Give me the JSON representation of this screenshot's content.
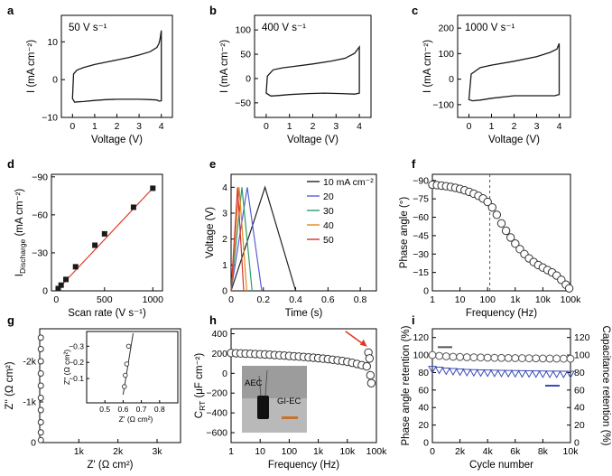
{
  "chart_data": [
    {
      "panel": "a",
      "type": "line",
      "annotation": "50 V s⁻¹",
      "xlabel": "Voltage (V)",
      "ylabel": "I (mA cm⁻²)",
      "xlim": [
        -0.5,
        4.5
      ],
      "ylim": [
        -10,
        17
      ],
      "xticks": [
        0,
        1,
        2,
        3,
        4
      ],
      "yticks": [
        -10,
        0,
        10
      ],
      "series": [
        {
          "x": [
            0,
            0.05,
            0.2,
            0.5,
            1,
            1.5,
            2,
            2.5,
            3,
            3.5,
            3.8,
            3.9,
            3.95,
            4,
            4,
            3.9,
            3.8,
            3.5,
            3,
            2.5,
            2,
            1.5,
            1,
            0.5,
            0.2,
            0.1,
            0
          ],
          "y": [
            -5,
            1.5,
            2.5,
            3.2,
            4,
            4.6,
            5.2,
            5.8,
            6.5,
            7.4,
            8.5,
            9.6,
            11,
            13,
            -5.6,
            -5.7,
            -5.4,
            -5.3,
            -5.2,
            -5.2,
            -5.2,
            -5.3,
            -5.5,
            -5.8,
            -5.9,
            -6,
            -5
          ]
        }
      ]
    },
    {
      "panel": "b",
      "type": "line",
      "annotation": "400 V s⁻¹",
      "xlabel": "Voltage (V)",
      "ylabel": "I (mA cm⁻²)",
      "xlim": [
        -0.5,
        4.5
      ],
      "ylim": [
        -80,
        130
      ],
      "xticks": [
        0,
        1,
        2,
        3,
        4
      ],
      "yticks": [
        -50,
        0,
        50,
        100
      ],
      "series": [
        {
          "x": [
            0,
            0.05,
            0.3,
            0.7,
            1.2,
            2,
            2.8,
            3.4,
            3.8,
            4,
            4,
            3.8,
            3.2,
            2.5,
            1.8,
            1,
            0.5,
            0.2,
            0
          ],
          "y": [
            -30,
            5,
            18,
            22,
            25,
            30,
            36,
            42,
            52,
            65,
            -30,
            -32,
            -31,
            -30,
            -31,
            -33,
            -35,
            -36,
            -30
          ]
        }
      ]
    },
    {
      "panel": "c",
      "type": "line",
      "annotation": "1000 V s⁻¹",
      "xlabel": "Voltage (V)",
      "ylabel": "I (mA cm⁻²)",
      "xlim": [
        -0.5,
        4.5
      ],
      "ylim": [
        -150,
        250
      ],
      "xticks": [
        0,
        1,
        2,
        3,
        4
      ],
      "yticks": [
        -100,
        0,
        100,
        200
      ],
      "series": [
        {
          "x": [
            0,
            0.1,
            0.5,
            1,
            2,
            3,
            3.6,
            3.9,
            4,
            4,
            3.8,
            3,
            2,
            1,
            0.5,
            0.15,
            0
          ],
          "y": [
            -80,
            20,
            45,
            55,
            70,
            88,
            105,
            118,
            140,
            -60,
            -65,
            -65,
            -65,
            -75,
            -82,
            -85,
            -80
          ]
        }
      ]
    },
    {
      "panel": "d",
      "type": "scatter",
      "xlabel": "Scan rate (V s⁻¹)",
      "ylabel_main": "I",
      "ylabel_sub": "Discharge",
      "ylabel_unit": " (mA cm⁻²)",
      "xlim": [
        -50,
        1100
      ],
      "ylim": [
        0,
        -92
      ],
      "xticks": [
        0,
        500,
        1000
      ],
      "yticks": [
        0,
        -30,
        -60,
        -90
      ],
      "series": [
        {
          "x": [
            20,
            50,
            100,
            200,
            400,
            500,
            800,
            1000
          ],
          "y": [
            -1.8,
            -4.5,
            -9,
            -19,
            -36,
            -45,
            -66,
            -81
          ]
        }
      ],
      "fit": {
        "x": [
          0,
          1000
        ],
        "y": [
          0,
          -81
        ]
      }
    },
    {
      "panel": "e",
      "type": "line",
      "xlabel": "Time (s)",
      "ylabel": "Voltage (V)",
      "xlim": [
        0,
        0.9
      ],
      "ylim": [
        0,
        4.5
      ],
      "xticks": [
        0,
        0.2,
        0.4,
        0.6,
        0.8
      ],
      "yticks": [
        0,
        1,
        2,
        3,
        4
      ],
      "legend_position": "right",
      "series": [
        {
          "name": "10 mA cm⁻²",
          "color": "#222222",
          "x": [
            0,
            0.21,
            0.4
          ],
          "y": [
            0,
            4,
            0
          ]
        },
        {
          "name": "20",
          "color": "#5a5ed6",
          "x": [
            0,
            0.1,
            0.19
          ],
          "y": [
            0,
            4,
            0
          ]
        },
        {
          "name": "30",
          "color": "#2a9d6a",
          "x": [
            0,
            0.067,
            0.13
          ],
          "y": [
            0,
            4,
            0
          ]
        },
        {
          "name": "40",
          "color": "#e08a1e",
          "x": [
            0,
            0.05,
            0.097
          ],
          "y": [
            0,
            4,
            0
          ]
        },
        {
          "name": "50",
          "color": "#d6332b",
          "x": [
            0,
            0.04,
            0.078
          ],
          "y": [
            0,
            4,
            0
          ]
        }
      ]
    },
    {
      "panel": "f",
      "type": "scatter",
      "xlabel": "Frequency (Hz)",
      "ylabel": "Phase angle (°)",
      "xscale": "log",
      "xlim": [
        1,
        100000
      ],
      "ylim": [
        0,
        -95
      ],
      "xtick_values": [
        1,
        10,
        100,
        1000,
        10000,
        100000
      ],
      "xtick_labels": [
        "1",
        "10",
        "100",
        "1k",
        "10k",
        "100k"
      ],
      "yticks": [
        0,
        -15,
        -30,
        -45,
        -60,
        -75,
        -90
      ],
      "vline": 120,
      "series": [
        {
          "x": [
            1,
            1.47,
            2.15,
            3.16,
            4.64,
            6.81,
            10,
            14.7,
            21.5,
            31.6,
            46.4,
            68.1,
            100,
            147,
            215,
            316,
            464,
            681,
            1000,
            1470,
            2150,
            3160,
            4640,
            6810,
            10000,
            14700,
            21500,
            31600,
            46400,
            68100,
            90000
          ],
          "y": [
            -86.5,
            -86.2,
            -85.8,
            -85.3,
            -84.7,
            -84,
            -83.1,
            -82,
            -80.7,
            -79.2,
            -77.5,
            -75.3,
            -72.5,
            -68,
            -62,
            -55,
            -49,
            -43.5,
            -38.5,
            -34,
            -30,
            -26.5,
            -23.5,
            -21,
            -19,
            -17,
            -15,
            -12.5,
            -9,
            -5,
            -2
          ]
        }
      ]
    },
    {
      "panel": "g",
      "type": "scatter",
      "xlabel": "Z' (Ω cm²)",
      "ylabel": "Z'' (Ω cm²)",
      "xlim": [
        0,
        3600
      ],
      "ylim": [
        0,
        -2800
      ],
      "xtick_values": [
        1000,
        2000,
        3000
      ],
      "xtick_labels": [
        "1k",
        "2k",
        "3k"
      ],
      "ytick_values": [
        0,
        -1000,
        -2000
      ],
      "ytick_labels": [
        "0",
        "-1k",
        "-2k"
      ],
      "series": [
        {
          "x": [
            0.6,
            0.6,
            0.7,
            0.8,
            0.9,
            1,
            1.1,
            1.2,
            1.4,
            1.6
          ],
          "y": [
            -2580,
            -2300,
            -2000,
            -1700,
            -1400,
            -1100,
            -800,
            -500,
            -250,
            -60
          ]
        }
      ],
      "inset": {
        "xlabel": "Z' (Ω cm²)",
        "ylabel": "Z'' (Ω cm²)",
        "xlim": [
          0.4,
          0.9
        ],
        "ylim": [
          0,
          -0.38
        ],
        "xticks": [
          0.5,
          0.6,
          0.7,
          0.8
        ],
        "yticks": [
          -0.1,
          -0.2,
          -0.3
        ],
        "x": [
          0.607,
          0.612,
          0.62,
          0.63
        ],
        "y": [
          -0.05,
          -0.12,
          -0.19,
          -0.3
        ],
        "line_x": [
          0.6,
          0.655
        ],
        "line_y": [
          0,
          -0.38
        ]
      }
    },
    {
      "panel": "h",
      "type": "scatter",
      "xlabel": "Frequency (Hz)",
      "ylabel_main": "C",
      "ylabel_sub": "RT",
      "ylabel_unit": " (μF cm⁻²)",
      "xscale": "log",
      "xlim": [
        1,
        100000
      ],
      "ylim": [
        -700,
        450
      ],
      "xtick_values": [
        1,
        10,
        100,
        1000,
        10000,
        100000
      ],
      "xtick_labels": [
        "1",
        "10",
        "100",
        "1k",
        "10k",
        "100k"
      ],
      "yticks": [
        -600,
        -400,
        -200,
        0,
        200,
        400
      ],
      "arrow_color": "#e03a2a",
      "photo_labels": [
        "AEC",
        "GI-EC"
      ],
      "series": [
        {
          "x": [
            1,
            1.47,
            2.15,
            3.16,
            4.64,
            6.81,
            10,
            14.7,
            21.5,
            31.6,
            46.4,
            68.1,
            100,
            147,
            215,
            316,
            464,
            681,
            1000,
            1470,
            2150,
            3160,
            4640,
            6810,
            10000,
            14700,
            21500,
            31600,
            46400,
            53000,
            58000,
            62000,
            67000
          ],
          "y": [
            205,
            203,
            201,
            199,
            197,
            195,
            193,
            191,
            188,
            185,
            182,
            179,
            175,
            172,
            169,
            165,
            161,
            157,
            153,
            148,
            143,
            137,
            131,
            124,
            116,
            106,
            95,
            82,
            70,
            210,
            150,
            -20,
            -100
          ]
        }
      ]
    },
    {
      "panel": "i",
      "type": "scatter",
      "xlabel": "Cycle number",
      "ylabel_left": "Phase angle retention (%)",
      "ylabel_right": "Capacitance retention (%)",
      "right_axis_color": "#3b4bb5",
      "xlim": [
        0,
        10000
      ],
      "ylim": [
        0,
        130
      ],
      "xtick_values": [
        0,
        2000,
        4000,
        6000,
        8000,
        10000
      ],
      "xtick_labels": [
        "0",
        "2k",
        "4k",
        "6k",
        "8k",
        "10k"
      ],
      "yticks": [
        0,
        20,
        40,
        60,
        80,
        100,
        120
      ],
      "series": [
        {
          "name": "Phase angle retention",
          "marker": "circle",
          "color": "#555555",
          "x": [
            0,
            500,
            1000,
            1500,
            2000,
            2500,
            3000,
            3500,
            4000,
            4500,
            5000,
            5500,
            6000,
            6500,
            7000,
            7500,
            8000,
            8500,
            9000,
            9500,
            10000
          ],
          "y": [
            100,
            99,
            98.5,
            98,
            97.8,
            97.5,
            97.3,
            97.2,
            97,
            96.8,
            96.7,
            96.6,
            96.5,
            96.4,
            96.3,
            96.2,
            96.1,
            96,
            96,
            95.9,
            95.8
          ]
        },
        {
          "name": "Capacitance retention",
          "marker": "triangle-down",
          "color": "#3b4bb5",
          "x": [
            0,
            500,
            1000,
            1500,
            2000,
            2500,
            3000,
            3500,
            4000,
            4500,
            5000,
            5500,
            6000,
            6500,
            7000,
            7500,
            8000,
            8500,
            9000,
            9500,
            10000
          ],
          "y": [
            84,
            83,
            82,
            81.5,
            81,
            80.5,
            80.2,
            80,
            79.8,
            79.6,
            79.5,
            79.3,
            79.2,
            79,
            78.9,
            78.8,
            78.7,
            78.6,
            78.5,
            78.4,
            78.3
          ]
        }
      ]
    }
  ]
}
